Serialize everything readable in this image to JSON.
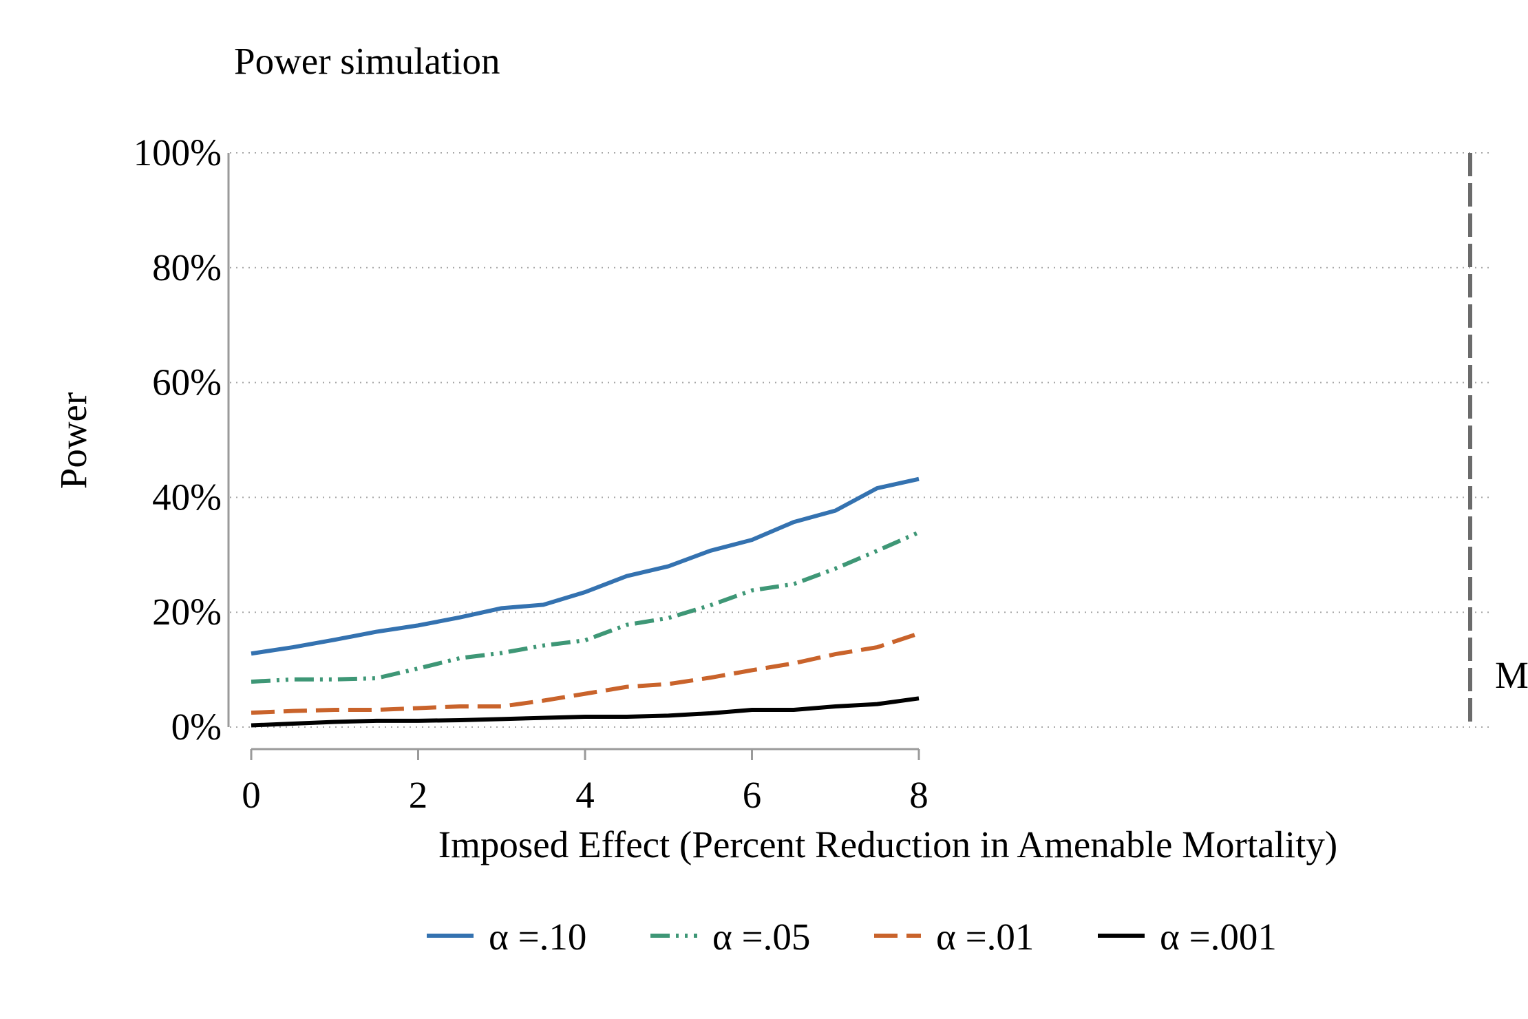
{
  "chart_data": {
    "type": "line",
    "title": "Power simulation",
    "xlabel": "Imposed Effect (Percent Reduction in Amenable Mortality)",
    "ylabel": "Power",
    "xlim": [
      0,
      8
    ],
    "ylim": [
      0,
      100
    ],
    "xticks": [
      0,
      2,
      4,
      6,
      8
    ],
    "yticks": [
      0,
      20,
      40,
      60,
      80,
      100
    ],
    "ytick_labels": [
      "0%",
      "20%",
      "40%",
      "60%",
      "80%",
      "100%"
    ],
    "grid": "horizontal dotted",
    "legend_position": "bottom",
    "x": [
      0,
      0.5,
      1,
      1.5,
      2,
      2.5,
      3,
      3.5,
      4,
      4.5,
      5,
      5.5,
      6,
      6.5,
      7,
      7.5,
      8
    ],
    "series": [
      {
        "name": "α =.10",
        "color": "#3472b0",
        "dash": "solid",
        "values": [
          12.8,
          13.9,
          15.2,
          16.6,
          17.7,
          19.1,
          20.7,
          21.3,
          23.5,
          26.3,
          28.0,
          30.7,
          32.6,
          35.7,
          37.7,
          41.6,
          43.2
        ]
      },
      {
        "name": "α =.05",
        "color": "#3e9776",
        "dash": "dashdot",
        "values": [
          7.9,
          8.3,
          8.3,
          8.5,
          10.2,
          12.0,
          12.9,
          14.2,
          15.1,
          17.8,
          19.0,
          21.2,
          23.8,
          24.9,
          27.6,
          30.7,
          33.9
        ]
      },
      {
        "name": "α =.01",
        "color": "#c9632b",
        "dash": "longdash",
        "values": [
          2.5,
          2.8,
          3.0,
          3.0,
          3.3,
          3.6,
          3.6,
          4.6,
          5.8,
          7.0,
          7.5,
          8.6,
          9.9,
          11.1,
          12.7,
          13.9,
          16.3
        ]
      },
      {
        "name": "α =.001",
        "color": "#000000",
        "dash": "solid",
        "values": [
          0.3,
          0.6,
          0.9,
          1.1,
          1.1,
          1.2,
          1.4,
          1.6,
          1.8,
          1.8,
          2.0,
          2.4,
          3.0,
          3.0,
          3.6,
          4.0,
          5.0
        ]
      }
    ],
    "reference_line_label_fragment": "M"
  }
}
